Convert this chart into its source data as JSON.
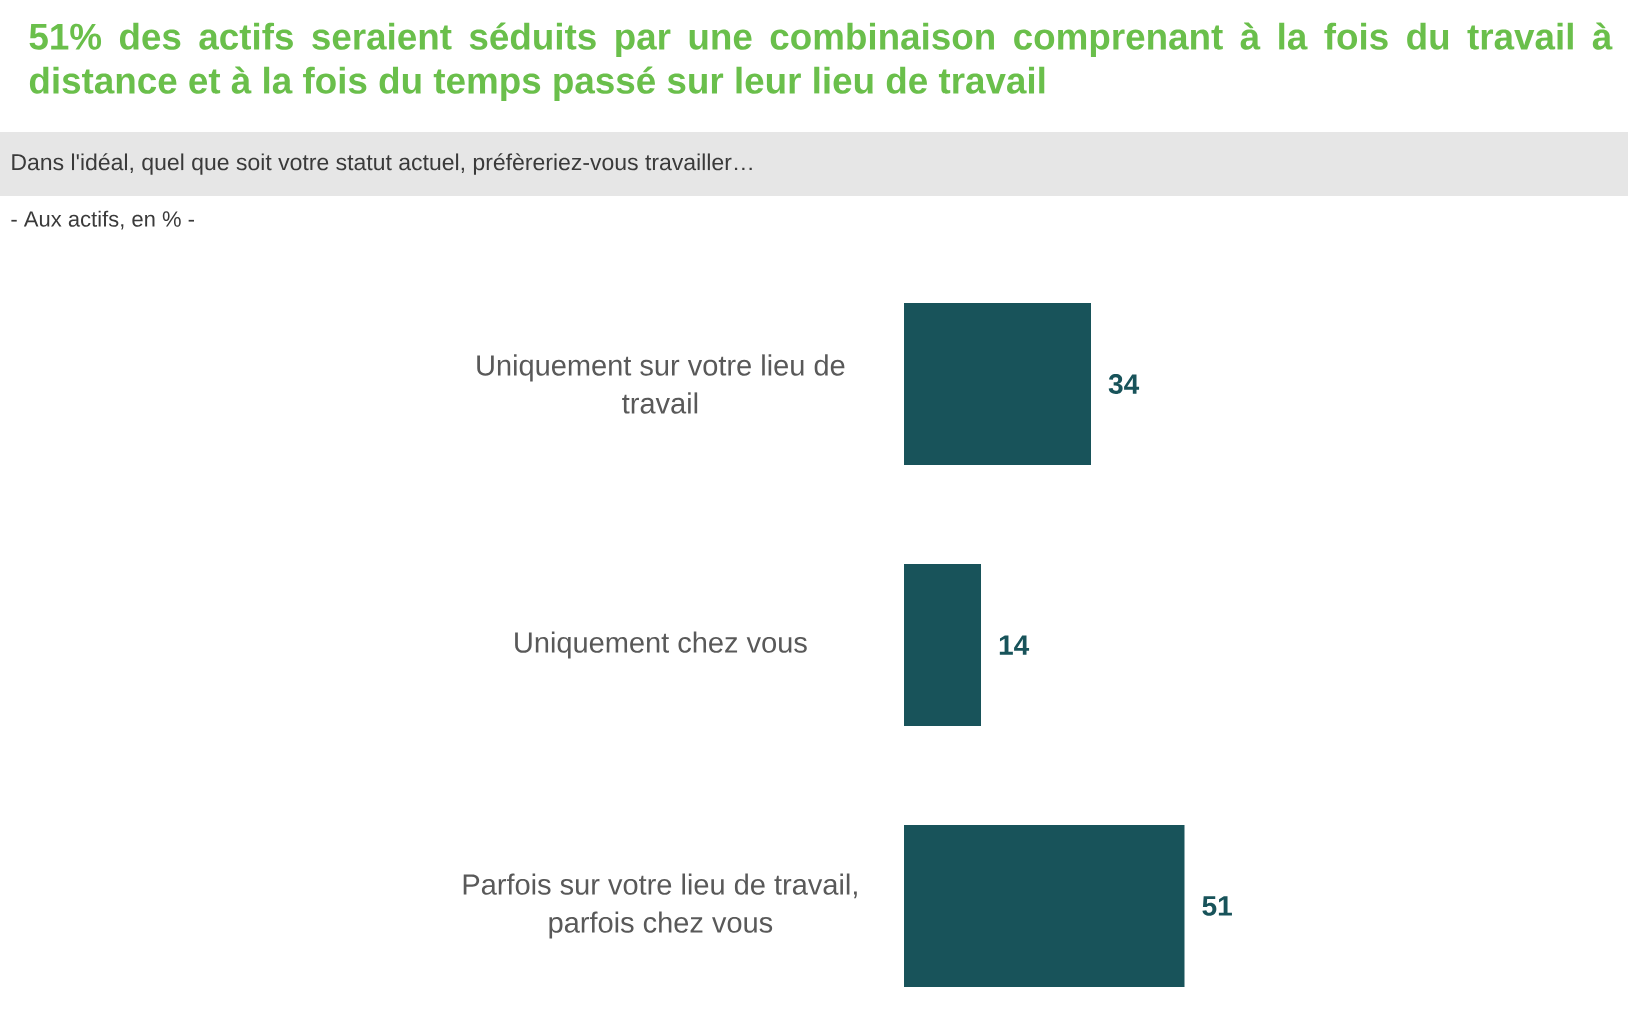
{
  "chart_data": {
    "type": "bar",
    "orientation": "horizontal",
    "title": "51% des actifs seraient séduits par une combinaison comprenant à la fois du travail à distance et à la fois du temps passé sur leur lieu de travail",
    "subtitle": "Dans l'idéal, quel que soit votre statut actuel, préfèreriez-vous travailler…",
    "annotations": [
      "- Aux actifs, en % -"
    ],
    "categories": [
      "Uniquement sur votre lieu de travail",
      "Uniquement chez vous",
      "Parfois sur votre lieu de travail, parfois chez vous"
    ],
    "values": [
      34,
      14,
      51
    ],
    "color": "#18535a",
    "data_labels": true,
    "tick_labels": "y"
  }
}
